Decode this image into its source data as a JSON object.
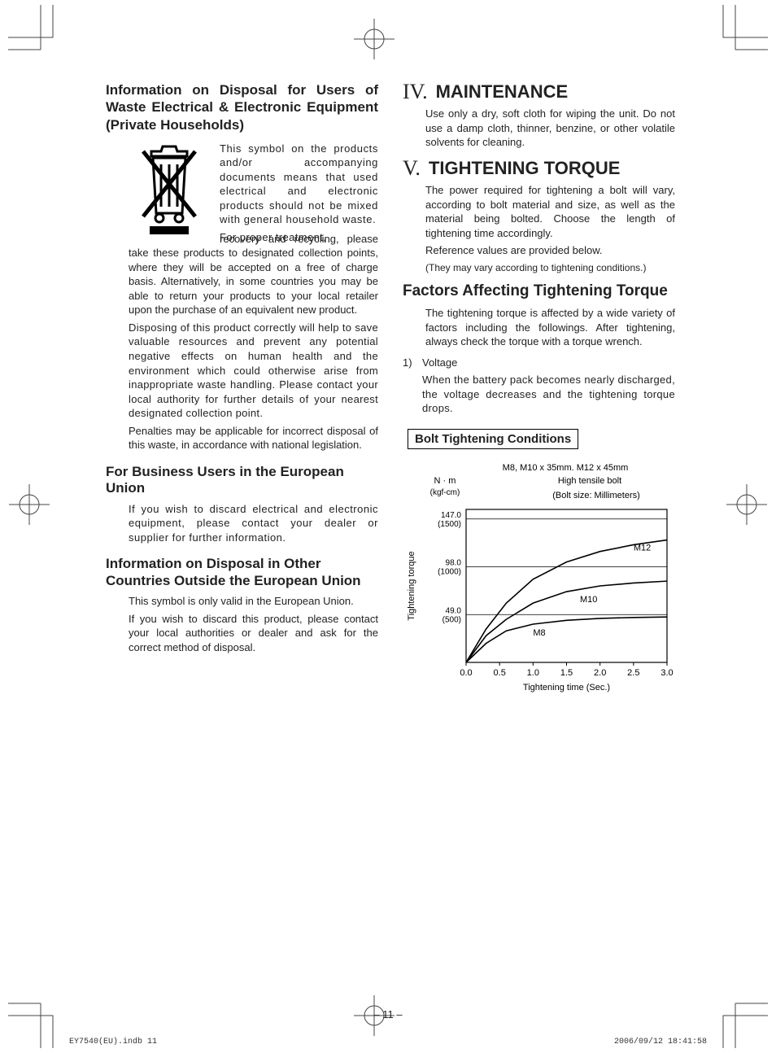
{
  "left": {
    "h1": "Information on Disposal for Users of Waste Electrical & Electronic Equipment (Private Households)",
    "p1": "This symbol on the products and/or accompanying documents means that used electrical and electronic products should not be mixed with general household waste.",
    "p2_lead": "For proper treatment,",
    "p2": "recovery and recycling, please take these products to designated collection points, where they will be accepted on a free of charge basis. Alternatively, in some countries you may be able to return your products to your local retailer upon the purchase of an equivalent new product.",
    "p3": "Disposing of this product correctly will help to save valuable resources and prevent any potential negative effects on human health and the environment which could otherwise arise from inappropriate waste handling. Please contact your local authority for further details of your nearest designated collection point.",
    "p4": "Penalties may be applicable for incorrect disposal of this waste, in accordance with national legislation.",
    "h2": "For Business Users in the European Union",
    "p5": "If you wish to discard electrical and electronic equipment, please contact your dealer or supplier for further information.",
    "h3": "Information on Disposal in Other Countries Outside the European Union",
    "p6": "This symbol is only valid in the European Union.",
    "p7": "If you wish to discard this product, please contact your local authorities or dealer and ask for the correct method of disposal."
  },
  "right": {
    "sec4_roman": "IV.",
    "sec4_title": "MAINTENANCE",
    "sec4_body": "Use only a dry, soft cloth for wiping the unit. Do not use a damp cloth, thinner, benzine, or other volatile solvents for cleaning.",
    "sec5_roman": "V.",
    "sec5_title": "TIGHTENING TORQUE",
    "sec5_body1": "The power required for tightening a bolt will vary, according to bolt material and size, as well as the material being bolted. Choose the length of tightening time accordingly.",
    "sec5_body2": "Reference values are provided below.",
    "sec5_body3": "(They may vary according to tightening conditions.)",
    "factors_title": "Factors Affecting Tightening Torque",
    "factors_body": "The tightening torque is affected by a wide variety of factors including the followings. After tightening, always check the torque with a torque wrench.",
    "item1_num": "1)",
    "item1_label": "Voltage",
    "item1_body": "When the battery pack becomes nearly discharged, the voltage decreases and the tightening torque drops.",
    "box_title": "Bolt Tightening Conditions"
  },
  "chart": {
    "type": "line",
    "title_line1": "M8, M10 x 35mm. M12 x 45mm",
    "title_line2": "High tensile bolt",
    "title_line3": "(Bolt size: Millimeters)",
    "y_unit_top": "N · m",
    "y_unit_bottom": "(kgf-cm)",
    "y_label": "Tightening torque",
    "x_label": "Tightening time (Sec.)",
    "y_ticks": [
      {
        "nm": "49.0",
        "kgf": "(500)",
        "val": 500
      },
      {
        "nm": "98.0",
        "kgf": "(1000)",
        "val": 1000
      },
      {
        "nm": "147.0",
        "kgf": "(1500)",
        "val": 1500
      }
    ],
    "x_ticks": [
      "0.0",
      "0.5",
      "1.0",
      "1.5",
      "2.0",
      "2.5",
      "3.0"
    ],
    "xlim": [
      0,
      3
    ],
    "ylim": [
      0,
      1600
    ],
    "series": [
      {
        "label": "M8",
        "label_x": 1.0,
        "label_y": 280,
        "points": [
          [
            0,
            0
          ],
          [
            0.3,
            200
          ],
          [
            0.6,
            330
          ],
          [
            1.0,
            400
          ],
          [
            1.5,
            440
          ],
          [
            2.0,
            460
          ],
          [
            2.5,
            470
          ],
          [
            3.0,
            475
          ]
        ]
      },
      {
        "label": "M10",
        "label_x": 1.7,
        "label_y": 630,
        "points": [
          [
            0,
            0
          ],
          [
            0.3,
            280
          ],
          [
            0.6,
            450
          ],
          [
            1.0,
            620
          ],
          [
            1.5,
            740
          ],
          [
            2.0,
            800
          ],
          [
            2.5,
            830
          ],
          [
            3.0,
            850
          ]
        ]
      },
      {
        "label": "M12",
        "label_x": 2.5,
        "label_y": 1170,
        "points": [
          [
            0,
            0
          ],
          [
            0.3,
            350
          ],
          [
            0.6,
            620
          ],
          [
            1.0,
            870
          ],
          [
            1.5,
            1050
          ],
          [
            2.0,
            1160
          ],
          [
            2.5,
            1230
          ],
          [
            3.0,
            1280
          ]
        ]
      }
    ],
    "stroke_color": "#000000",
    "stroke_width": 1.6,
    "axis_color": "#000000",
    "background": "#ffffff",
    "label_fontsize": 11,
    "tick_fontsize": 11
  },
  "page_num": "– 11 –",
  "footer_left": "EY7540(EU).indb   11",
  "footer_right": "2006/09/12   18:41:58"
}
